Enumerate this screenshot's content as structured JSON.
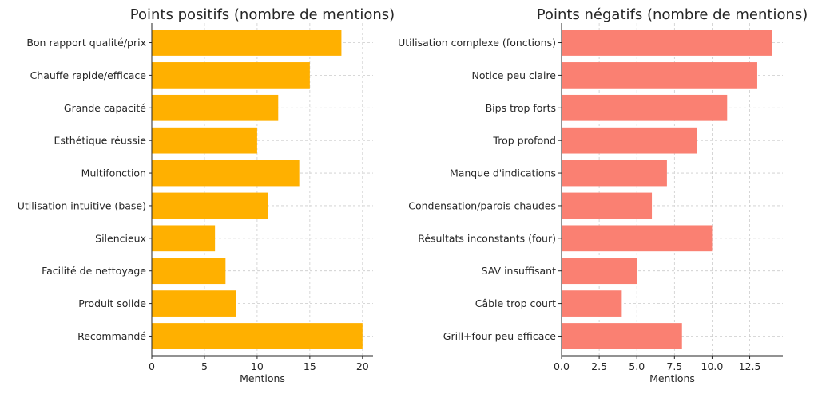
{
  "colors": {
    "positive": "#FFB000",
    "negative": "#FA8072",
    "text": "#262626",
    "grid": "#cccccc"
  },
  "chart_data": [
    {
      "type": "bar",
      "orientation": "horizontal",
      "title": "Points positifs (nombre de mentions)",
      "xlabel": "Mentions",
      "ylabel": "",
      "xlim": [
        0,
        21
      ],
      "xticks": [
        0,
        5,
        10,
        15,
        20
      ],
      "xtick_labels": [
        "0",
        "5",
        "10",
        "15",
        "20"
      ],
      "grid": true,
      "color": "#FFB000",
      "categories": [
        "Bon rapport qualité/prix",
        "Chauffe rapide/efficace",
        "Grande capacité",
        "Esthétique réussie",
        "Multifonction",
        "Utilisation intuitive (base)",
        "Silencieux",
        "Facilité de nettoyage",
        "Produit solide",
        "Recommandé"
      ],
      "values": [
        18,
        15,
        12,
        10,
        14,
        11,
        6,
        7,
        8,
        20
      ]
    },
    {
      "type": "bar",
      "orientation": "horizontal",
      "title": "Points négatifs (nombre de mentions)",
      "xlabel": "Mentions",
      "ylabel": "",
      "xlim": [
        0,
        14.7
      ],
      "xticks": [
        0,
        2.5,
        5,
        7.5,
        10,
        12.5
      ],
      "xtick_labels": [
        "0.0",
        "2.5",
        "5.0",
        "7.5",
        "10.0",
        "12.5"
      ],
      "grid": true,
      "color": "#FA8072",
      "categories": [
        "Utilisation complexe (fonctions)",
        "Notice peu claire",
        "Bips trop forts",
        "Trop profond",
        "Manque d'indications",
        "Condensation/parois chaudes",
        "Résultats inconstants (four)",
        "SAV insuffisant",
        "Câble trop court",
        "Grill+four peu efficace"
      ],
      "values": [
        14,
        13,
        11,
        9,
        7,
        6,
        10,
        5,
        4,
        8
      ]
    }
  ]
}
